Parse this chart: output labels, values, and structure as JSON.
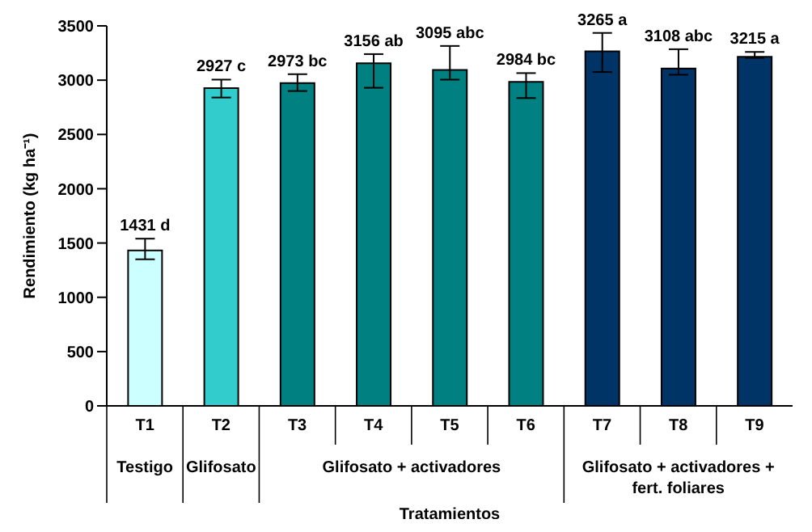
{
  "chart_data": {
    "type": "bar",
    "xlabel": "Tratamientos",
    "ylabel": "Rendimiento (kg ha⁻¹)",
    "categories": [
      "T1",
      "T2",
      "T3",
      "T4",
      "T5",
      "T6",
      "T7",
      "T8",
      "T9"
    ],
    "values": [
      1431,
      2927,
      2973,
      3156,
      3095,
      2984,
      3265,
      3108,
      3215
    ],
    "colors": [
      "#ccffff",
      "#33cccc",
      "#008080",
      "#008080",
      "#008080",
      "#008080",
      "#003366",
      "#003366",
      "#003366"
    ],
    "errors": [
      [
        1350,
        1540
      ],
      [
        2840,
        3005
      ],
      [
        2900,
        3055
      ],
      [
        2930,
        3240
      ],
      [
        3005,
        3315
      ],
      [
        2835,
        3065
      ],
      [
        3075,
        3435
      ],
      [
        3050,
        3285
      ],
      [
        3205,
        3260
      ]
    ],
    "value_labels": [
      "1431 d",
      "2927 c",
      "2973 bc",
      "3156 ab",
      "3095 abc",
      "2984 bc",
      "3265 a",
      "3108 abc",
      "3215 a"
    ],
    "ylim": [
      0,
      3500
    ],
    "yticks": [
      0,
      500,
      1000,
      1500,
      2000,
      2500,
      3000,
      3500
    ],
    "grid": false,
    "legend": false,
    "annotations": [
      "Testigo",
      "Glifosato",
      "Glifosato + activadores",
      "Glifosato + activadores + fert. foliares"
    ]
  }
}
